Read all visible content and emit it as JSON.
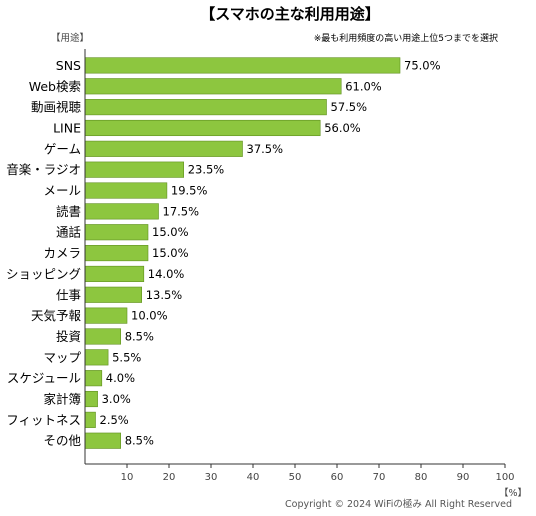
{
  "chart_data": {
    "type": "bar",
    "orientation": "horizontal",
    "title": "【スマホの主な利用用途】",
    "subtitle": "※最も利用頻度の高い用途上位5つまでを選択",
    "ylabel": "【用途】",
    "xlabel": "【%】",
    "xlim": [
      0,
      100
    ],
    "xticks": [
      10,
      20,
      30,
      40,
      50,
      60,
      70,
      80,
      90,
      100
    ],
    "categories": [
      "SNS",
      "Web検索",
      "動画視聴",
      "LINE",
      "ゲーム",
      "音楽・ラジオ",
      "メール",
      "読書",
      "通話",
      "カメラ",
      "ショッピング",
      "仕事",
      "天気予報",
      "投資",
      "マップ",
      "スケジュール",
      "家計簿",
      "フィットネス",
      "その他"
    ],
    "values": [
      75.0,
      61.0,
      57.5,
      56.0,
      37.5,
      23.5,
      19.5,
      17.5,
      15.0,
      15.0,
      14.0,
      13.5,
      10.0,
      8.5,
      5.5,
      4.0,
      3.0,
      2.5,
      8.5
    ],
    "value_labels": [
      "75.0%",
      "61.0%",
      "57.5%",
      "56.0%",
      "37.5%",
      "23.5%",
      "19.5%",
      "17.5%",
      "15.0%",
      "15.0%",
      "14.0%",
      "13.5%",
      "10.0%",
      "8.5%",
      "5.5%",
      "4.0%",
      "3.0%",
      "2.5%",
      "8.5%"
    ],
    "grid": false,
    "legend": "none",
    "colors": {
      "bar_fill": "#8dc63f",
      "bar_stroke": "#5f8f1e",
      "axis": "#333333"
    }
  },
  "footer": {
    "copyright": "Copyright © 2024 WiFiの極み All Right Reserved"
  }
}
